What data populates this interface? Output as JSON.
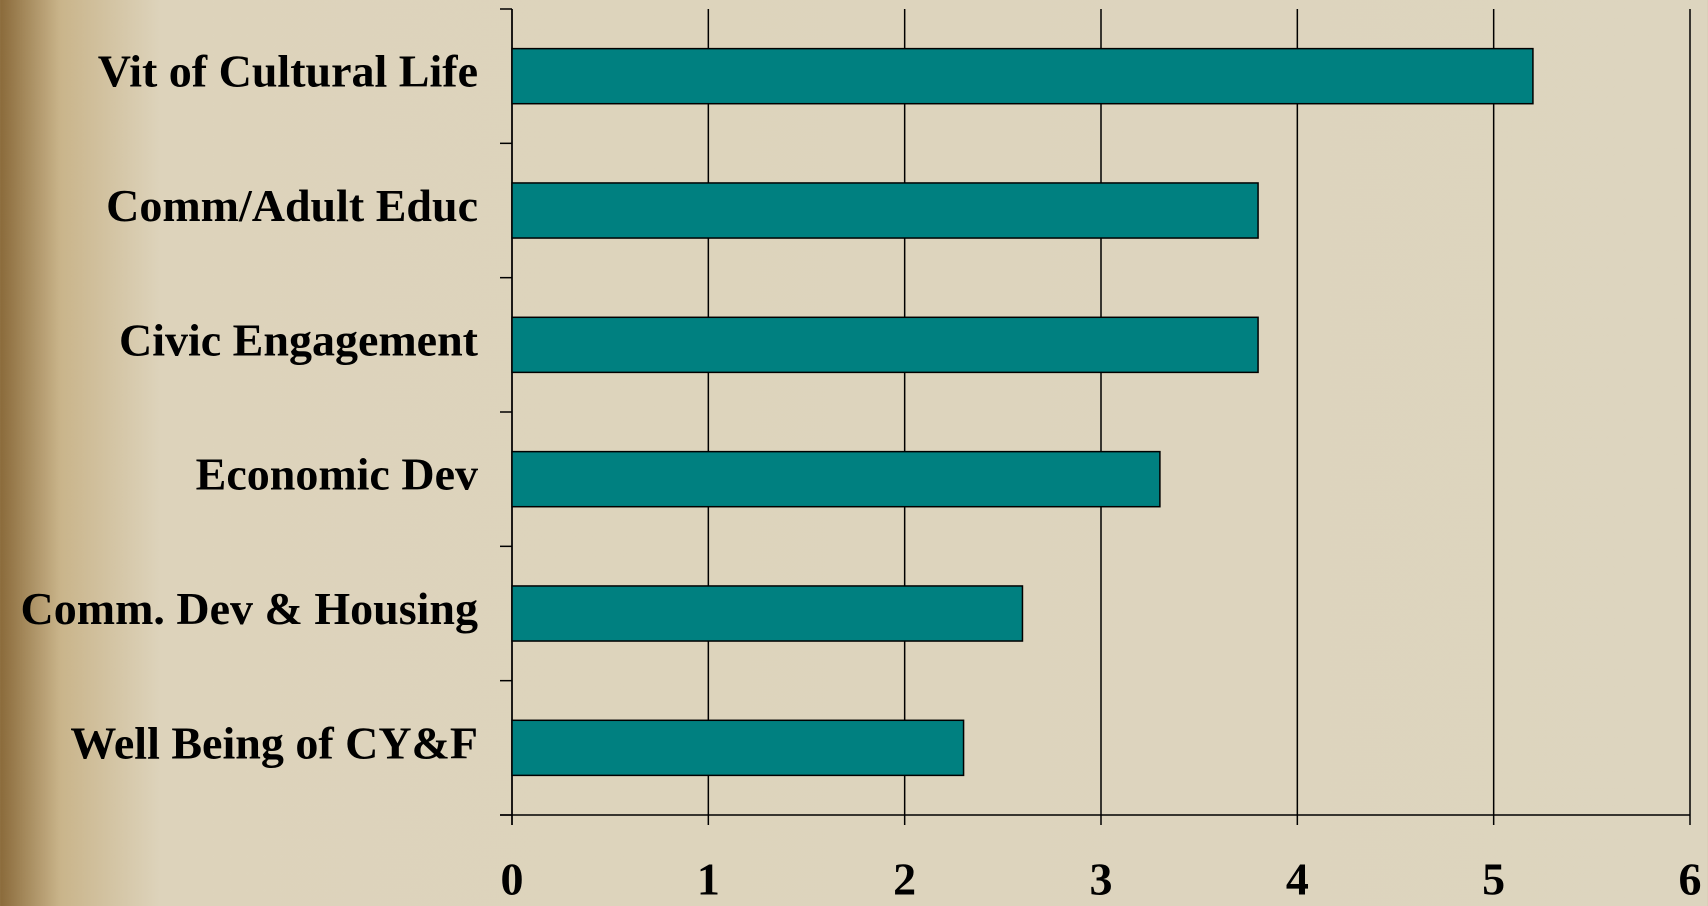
{
  "chart_data": {
    "type": "barh",
    "categories": [
      "Vit of Cultural Life",
      "Comm/Adult Educ",
      "Civic Engagement",
      "Economic Dev",
      "Comm. Dev & Housing",
      "Well Being of CY&F"
    ],
    "values": [
      5.2,
      3.8,
      3.8,
      3.3,
      2.6,
      2.3
    ],
    "color": "#008080",
    "xlim": [
      0,
      6
    ],
    "xticks": [
      0,
      1,
      2,
      3,
      4,
      5,
      6
    ],
    "grid": true
  }
}
